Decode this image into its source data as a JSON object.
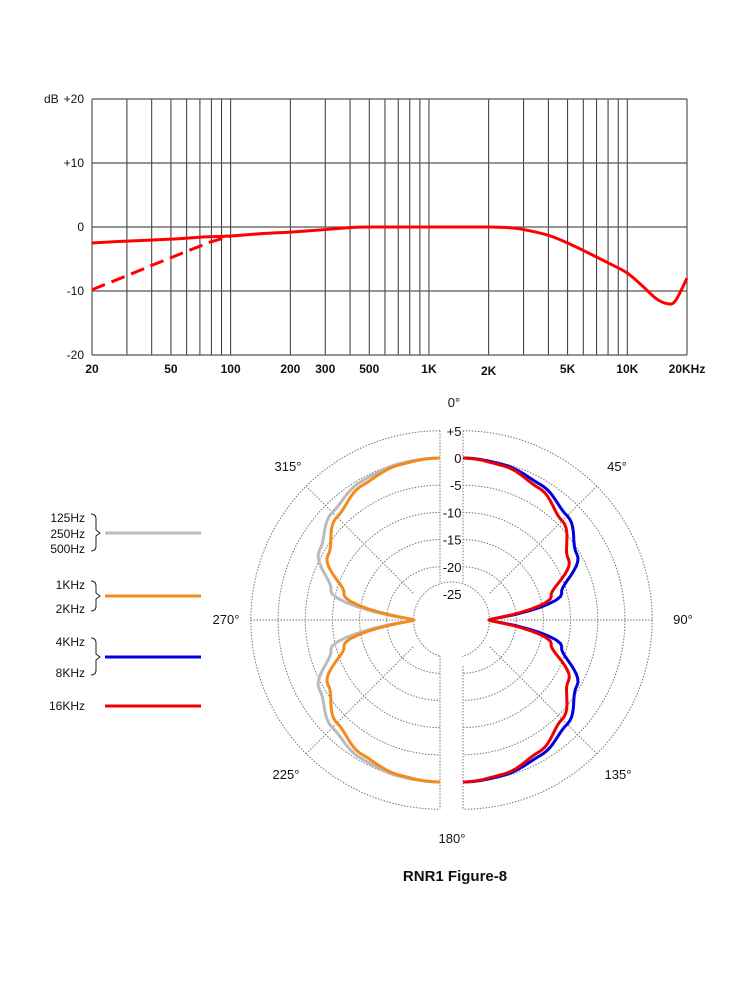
{
  "chart_data": [
    {
      "type": "line",
      "xscale": "log",
      "xlim": [
        20,
        20000
      ],
      "ylim": [
        -20,
        20
      ],
      "grid": true,
      "ylabel": "dB",
      "yticks": [
        {
          "v": 20,
          "label": "+20"
        },
        {
          "v": 10,
          "label": "+10"
        },
        {
          "v": 0,
          "label": "0"
        },
        {
          "v": -10,
          "label": "-10"
        },
        {
          "v": -20,
          "label": "-20"
        }
      ],
      "xticks": [
        {
          "v": 20,
          "label": "20"
        },
        {
          "v": 50,
          "label": "50"
        },
        {
          "v": 100,
          "label": "100"
        },
        {
          "v": 200,
          "label": "200"
        },
        {
          "v": 300,
          "label": "300"
        },
        {
          "v": 500,
          "label": "500"
        },
        {
          "v": 1000,
          "label": "1K"
        },
        {
          "v": 2000,
          "label": "2K"
        },
        {
          "v": 5000,
          "label": "5K"
        },
        {
          "v": 10000,
          "label": "10K"
        },
        {
          "v": 20000,
          "label": "20KHz"
        }
      ],
      "series": [
        {
          "style": "solid",
          "color": "#ff0000",
          "x": [
            20,
            30,
            50,
            70,
            100,
            150,
            200,
            300,
            400,
            500,
            1000,
            2000,
            2500,
            3000,
            4000,
            5000,
            6500,
            8000,
            10000,
            12000,
            14000,
            16000,
            17500,
            20000
          ],
          "y": [
            -2.5,
            -2.2,
            -1.9,
            -1.6,
            -1.4,
            -1.0,
            -0.8,
            -0.4,
            -0.1,
            0,
            0,
            0,
            -0.1,
            -0.4,
            -1.3,
            -2.5,
            -4.2,
            -5.6,
            -7.2,
            -9.3,
            -11.2,
            -12.0,
            -11.5,
            -8.0
          ]
        },
        {
          "style": "dashed",
          "color": "#ff0000",
          "x": [
            20,
            30,
            40,
            50,
            60,
            70,
            80,
            100
          ],
          "y": [
            -9.8,
            -7.6,
            -6.0,
            -4.8,
            -3.8,
            -3.0,
            -2.3,
            -1.5
          ]
        }
      ]
    },
    {
      "type": "polar",
      "title": "RNR1 Figure-8",
      "radial_ticks": [
        {
          "v": 5,
          "label": "+5"
        },
        {
          "v": 0,
          "label": "0"
        },
        {
          "v": -5,
          "label": "-5"
        },
        {
          "v": -10,
          "label": "-10"
        },
        {
          "v": -15,
          "label": "-15"
        },
        {
          "v": -20,
          "label": "-20"
        },
        {
          "v": -25,
          "label": "-25"
        }
      ],
      "rlim": [
        -25,
        5
      ],
      "angle_labels": [
        {
          "a": 0,
          "label": "0°"
        },
        {
          "a": 45,
          "label": "45°"
        },
        {
          "a": 90,
          "label": "90°"
        },
        {
          "a": 135,
          "label": "135°"
        },
        {
          "a": 180,
          "label": "180°"
        },
        {
          "a": 225,
          "label": "225°"
        },
        {
          "a": 270,
          "label": "270°"
        },
        {
          "a": 315,
          "label": "315°"
        }
      ],
      "angles": [
        0,
        15,
        30,
        45,
        60,
        75,
        90
      ],
      "series": [
        {
          "name": "125Hz 250Hz 500Hz",
          "labels": [
            "125Hz",
            "250Hz",
            "500Hz"
          ],
          "color": "#bbbbbb",
          "side": "left",
          "db": [
            0,
            -0.1,
            -0.5,
            -1.8,
            -4.2,
            -9.0,
            -25
          ]
        },
        {
          "name": "1KHz 2KHz",
          "labels": [
            "1KHz",
            "2KHz"
          ],
          "color": "#f28a1e",
          "side": "left",
          "db": [
            0,
            -0.3,
            -1.2,
            -3.0,
            -6.0,
            -11.5,
            -25
          ]
        },
        {
          "name": "4KHz 8KHz",
          "labels": [
            "4KHz",
            "8KHz"
          ],
          "color": "#0000dd",
          "side": "right",
          "db": [
            0,
            -0.3,
            -1.1,
            -2.7,
            -5.6,
            -11.0,
            -25
          ]
        },
        {
          "name": "16KHz",
          "labels": [
            "16KHz"
          ],
          "color": "#ee0000",
          "side": "right",
          "db": [
            0,
            -0.5,
            -1.8,
            -4.0,
            -7.4,
            -13.0,
            -25
          ]
        }
      ]
    }
  ]
}
